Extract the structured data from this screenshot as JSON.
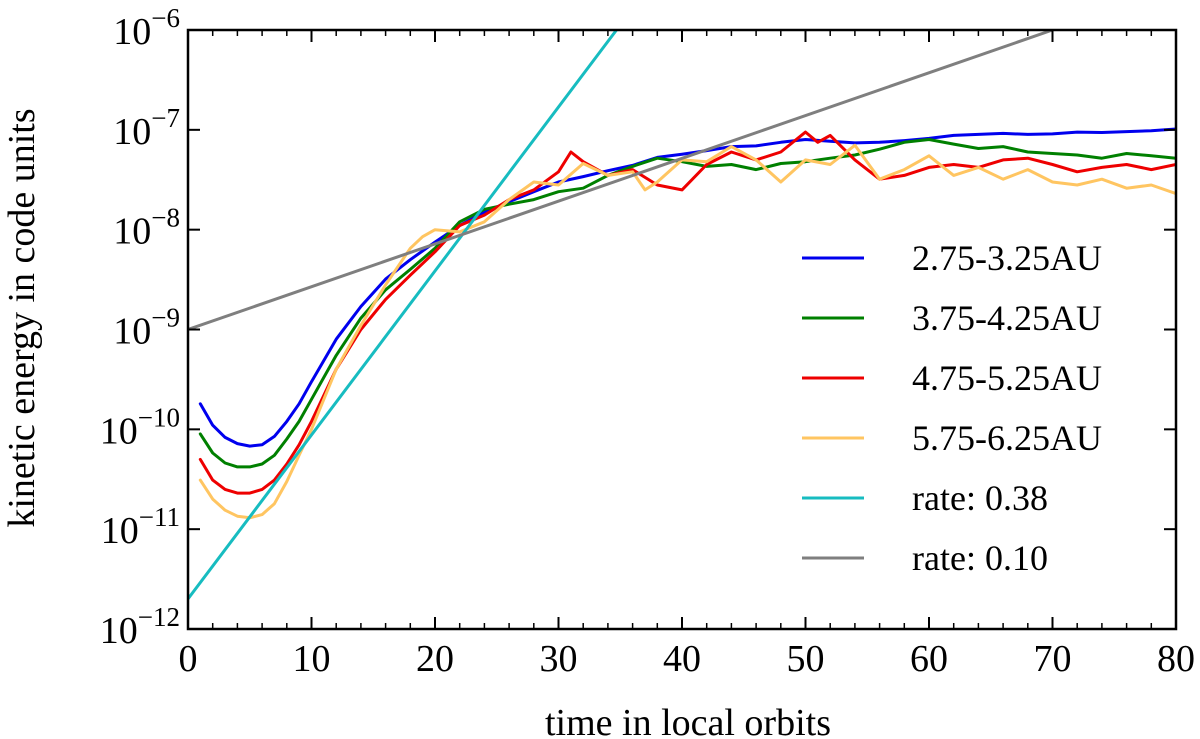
{
  "chart_data": {
    "type": "line",
    "title": "",
    "xlabel": "time in local orbits",
    "ylabel": "kinetic energy in code units",
    "xlim": [
      0,
      80
    ],
    "ylim": [
      1e-12,
      1e-06
    ],
    "yscale": "log",
    "x_ticks": [
      0,
      10,
      20,
      30,
      40,
      50,
      60,
      70,
      80
    ],
    "y_tick_exponents": [
      -12,
      -11,
      -10,
      -9,
      -8,
      -7,
      -6
    ],
    "y_tick_base": "10",
    "legend_position": "lower-right",
    "grid": false,
    "series": [
      {
        "name": "2.75-3.25AU",
        "color": "#0000ee",
        "x": [
          1,
          2,
          3,
          4,
          5,
          6,
          7,
          8,
          9,
          10,
          12,
          14,
          16,
          18,
          20,
          22,
          24,
          26,
          28,
          30,
          32,
          34,
          36,
          38,
          40,
          42,
          44,
          46,
          48,
          50,
          52,
          54,
          56,
          58,
          60,
          62,
          64,
          66,
          68,
          70,
          72,
          74,
          76,
          78,
          80
        ],
        "y": [
          1.8e-10,
          1.1e-10,
          8.3e-11,
          7.2e-11,
          6.8e-11,
          7e-11,
          8.5e-11,
          1.2e-10,
          1.8e-10,
          3e-10,
          8e-10,
          1.7e-09,
          3.2e-09,
          5e-09,
          7.5e-09,
          1.1e-08,
          1.5e-08,
          1.9e-08,
          2.4e-08,
          3e-08,
          3.4e-08,
          3.9e-08,
          4.4e-08,
          5.3e-08,
          5.7e-08,
          6.2e-08,
          6.8e-08,
          6.9e-08,
          7.5e-08,
          8e-08,
          7.7e-08,
          7.4e-08,
          7.5e-08,
          7.8e-08,
          8.2e-08,
          8.8e-08,
          9e-08,
          9.2e-08,
          9e-08,
          9.1e-08,
          9.5e-08,
          9.4e-08,
          9.6e-08,
          9.8e-08,
          1.02e-07
        ]
      },
      {
        "name": "3.75-4.25AU",
        "color": "#008000",
        "x": [
          1,
          2,
          3,
          4,
          5,
          6,
          7,
          8,
          9,
          10,
          12,
          14,
          16,
          18,
          20,
          22,
          24,
          26,
          28,
          30,
          32,
          34,
          36,
          38,
          40,
          42,
          44,
          46,
          48,
          50,
          52,
          54,
          56,
          58,
          60,
          62,
          64,
          66,
          68,
          70,
          72,
          74,
          76,
          78,
          80
        ],
        "y": [
          9e-11,
          5.8e-11,
          4.6e-11,
          4.2e-11,
          4.2e-11,
          4.5e-11,
          5.5e-11,
          8e-11,
          1.2e-10,
          2e-10,
          5.5e-10,
          1.3e-09,
          2.5e-09,
          4e-09,
          6.5e-09,
          1.2e-08,
          1.6e-08,
          1.8e-08,
          2e-08,
          2.4e-08,
          2.6e-08,
          3.5e-08,
          4.3e-08,
          5.2e-08,
          4.8e-08,
          4.3e-08,
          4.5e-08,
          4e-08,
          4.6e-08,
          4.8e-08,
          5.2e-08,
          5.6e-08,
          6.4e-08,
          7.5e-08,
          8e-08,
          7.2e-08,
          6.5e-08,
          6.8e-08,
          6e-08,
          5.8e-08,
          5.6e-08,
          5.2e-08,
          5.8e-08,
          5.5e-08,
          5.2e-08
        ]
      },
      {
        "name": "4.75-5.25AU",
        "color": "#ee0000",
        "x": [
          1,
          2,
          3,
          4,
          5,
          6,
          7,
          8,
          9,
          10,
          12,
          14,
          16,
          18,
          20,
          22,
          24,
          26,
          28,
          30,
          31,
          32,
          34,
          36,
          38,
          40,
          42,
          44,
          46,
          48,
          50,
          51,
          52,
          54,
          56,
          58,
          60,
          62,
          64,
          66,
          68,
          70,
          72,
          74,
          76,
          78,
          80
        ],
        "y": [
          5e-11,
          3.1e-11,
          2.5e-11,
          2.3e-11,
          2.3e-11,
          2.5e-11,
          3.1e-11,
          4.5e-11,
          7e-11,
          1.2e-10,
          4e-10,
          1e-09,
          2e-09,
          3.5e-09,
          6e-09,
          1.1e-08,
          1.4e-08,
          2e-08,
          2.5e-08,
          3.8e-08,
          6e-08,
          4.8e-08,
          3.5e-08,
          4e-08,
          2.8e-08,
          2.5e-08,
          4.5e-08,
          6e-08,
          5e-08,
          6e-08,
          9.5e-08,
          7.5e-08,
          8.8e-08,
          5e-08,
          3.2e-08,
          3.5e-08,
          4.2e-08,
          4.5e-08,
          4.2e-08,
          5e-08,
          5.2e-08,
          4.5e-08,
          3.8e-08,
          4.2e-08,
          4.5e-08,
          4e-08,
          4.5e-08
        ]
      },
      {
        "name": "5.75-6.25AU",
        "color": "#ffc561",
        "x": [
          1,
          2,
          3,
          4,
          5,
          6,
          7,
          8,
          9,
          10,
          12,
          14,
          16,
          18,
          19,
          20,
          22,
          24,
          26,
          28,
          30,
          32,
          34,
          36,
          37,
          38,
          40,
          42,
          44,
          46,
          48,
          50,
          52,
          54,
          56,
          58,
          60,
          62,
          64,
          66,
          68,
          70,
          72,
          74,
          76,
          78,
          80
        ],
        "y": [
          3.1e-11,
          2e-11,
          1.55e-11,
          1.35e-11,
          1.3e-11,
          1.4e-11,
          1.8e-11,
          3e-11,
          5.5e-11,
          1e-10,
          4e-10,
          1.1e-09,
          2.8e-09,
          6.5e-09,
          8.5e-09,
          1e-08,
          9.5e-09,
          1.2e-08,
          2e-08,
          3e-08,
          2.8e-08,
          4.6e-08,
          3.5e-08,
          3.8e-08,
          2.5e-08,
          3e-08,
          5e-08,
          4.8e-08,
          6.8e-08,
          5e-08,
          3e-08,
          5e-08,
          4.5e-08,
          7e-08,
          3.2e-08,
          4e-08,
          5.5e-08,
          3.5e-08,
          4.2e-08,
          3.2e-08,
          4e-08,
          3e-08,
          2.8e-08,
          3.2e-08,
          2.6e-08,
          2.8e-08,
          2.3e-08
        ]
      },
      {
        "name": "rate: 0.38",
        "color": "#17bcc0",
        "x": [
          0,
          34.7
        ],
        "y": [
          2e-12,
          1e-06
        ]
      },
      {
        "name": "rate: 0.10",
        "color": "#7f7f7f",
        "x": [
          0,
          70
        ],
        "y": [
          1e-09,
          1e-06
        ]
      }
    ]
  }
}
